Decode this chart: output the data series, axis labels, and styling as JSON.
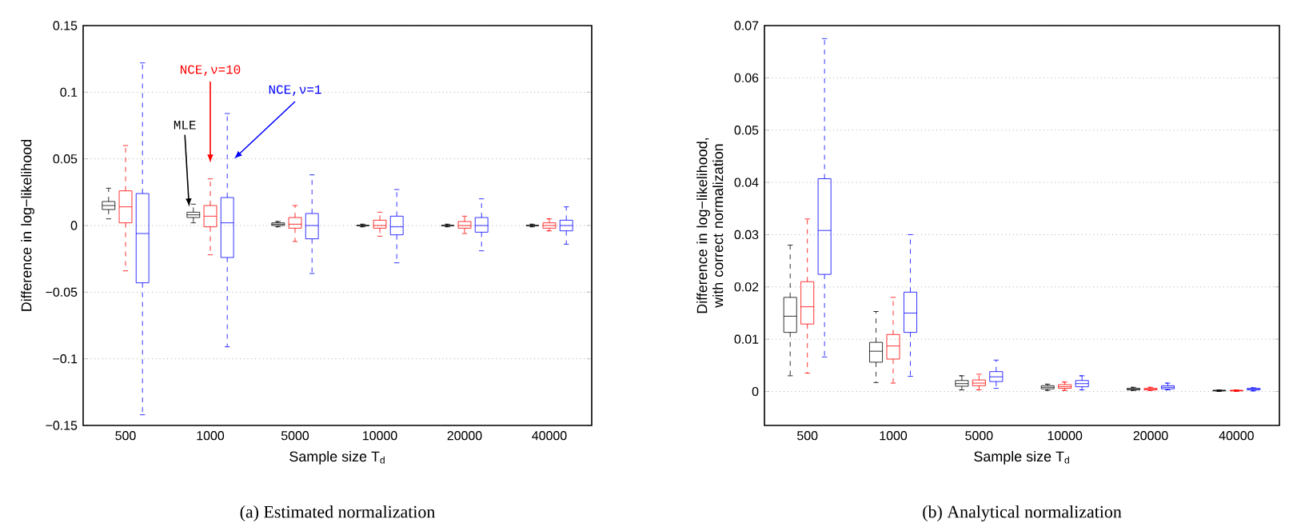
{
  "chart_data": [
    {
      "type": "box",
      "xlabel": "Sample size T$_{d}$",
      "ylabel": "Difference in log−likelihood",
      "categories": [
        "500",
        "1000",
        "5000",
        "10000",
        "20000",
        "40000"
      ],
      "ylim": [
        -0.15,
        0.15
      ],
      "yticks": [
        {
          "value": -0.15,
          "label": "−0.15"
        },
        {
          "value": -0.1,
          "label": "−0.1"
        },
        {
          "value": -0.05,
          "label": "−0.05"
        },
        0,
        0.05,
        0.1,
        0.15
      ],
      "grid": "y",
      "annotations": [
        "(a) Estimated normalization"
      ],
      "series": [
        {
          "name": "MLE",
          "color": "#000000",
          "boxes": [
            {
              "low": 0.005,
              "q1": 0.012,
              "median": 0.015,
              "q3": 0.018,
              "high": 0.028
            },
            {
              "low": 0.002,
              "q1": 0.006,
              "median": 0.008,
              "q3": 0.01,
              "high": 0.016
            },
            {
              "low": -0.001,
              "q1": 0,
              "median": 0.001,
              "q3": 0.002,
              "high": 0.003
            },
            {
              "low": -0.001,
              "q1": 0,
              "median": 0,
              "q3": 0,
              "high": 0.001
            },
            {
              "low": -0.001,
              "q1": 0,
              "median": 0,
              "q3": 0,
              "high": 0.001
            },
            {
              "low": -0.001,
              "q1": 0,
              "median": 0,
              "q3": 0,
              "high": 0.001
            }
          ]
        },
        {
          "name": "NCE,ν=10",
          "color": "#ff0000",
          "boxes": [
            {
              "low": -0.034,
              "q1": 0.002,
              "median": 0.014,
              "q3": 0.026,
              "high": 0.06
            },
            {
              "low": -0.022,
              "q1": -0.001,
              "median": 0.007,
              "q3": 0.015,
              "high": 0.035
            },
            {
              "low": -0.012,
              "q1": -0.002,
              "median": 0.001,
              "q3": 0.006,
              "high": 0.015
            },
            {
              "low": -0.008,
              "q1": -0.002,
              "median": 0,
              "q3": 0.004,
              "high": 0.01
            },
            {
              "low": -0.006,
              "q1": -0.002,
              "median": 0,
              "q3": 0.003,
              "high": 0.007
            },
            {
              "low": -0.004,
              "q1": -0.002,
              "median": 0,
              "q3": 0.002,
              "high": 0.005
            }
          ]
        },
        {
          "name": "NCE,ν=1",
          "color": "#0000ff",
          "boxes": [
            {
              "low": -0.142,
              "q1": -0.043,
              "median": -0.006,
              "q3": 0.024,
              "high": 0.122
            },
            {
              "low": -0.091,
              "q1": -0.024,
              "median": 0.002,
              "q3": 0.021,
              "high": 0.084
            },
            {
              "low": -0.036,
              "q1": -0.01,
              "median": 0,
              "q3": 0.009,
              "high": 0.038
            },
            {
              "low": -0.028,
              "q1": -0.007,
              "median": -0.001,
              "q3": 0.007,
              "high": 0.027
            },
            {
              "low": -0.019,
              "q1": -0.005,
              "median": 0,
              "q3": 0.006,
              "high": 0.02
            },
            {
              "low": -0.014,
              "q1": -0.004,
              "median": 0,
              "q3": 0.004,
              "high": 0.014
            }
          ]
        }
      ]
    },
    {
      "type": "box",
      "xlabel": "Sample size T$_{d}$",
      "ylabel": "Difference in log−likelihood, with correct normalization",
      "categories": [
        "500",
        "1000",
        "5000",
        "10000",
        "20000",
        "40000"
      ],
      "ylim": [
        -0.0065,
        0.07
      ],
      "yticks": [
        0,
        0.01,
        0.02,
        0.03,
        0.04,
        0.05,
        0.06,
        0.07
      ],
      "grid": "y",
      "annotations": [
        "(b) Analytical normalization"
      ],
      "series": [
        {
          "color": "#000000",
          "boxes": [
            {
              "low": 0.003,
              "q1": 0.0113,
              "median": 0.0144,
              "q3": 0.018,
              "high": 0.028
            },
            {
              "low": 0.0017,
              "q1": 0.0056,
              "median": 0.0077,
              "q3": 0.0094,
              "high": 0.0153
            },
            {
              "low": 0.0003,
              "q1": 0.001,
              "median": 0.0015,
              "q3": 0.0021,
              "high": 0.003
            },
            {
              "low": 0.0002,
              "q1": 0.0005,
              "median": 0.0008,
              "q3": 0.0011,
              "high": 0.0014
            },
            {
              "low": 0.0002,
              "q1": 0.0003,
              "median": 0.0004,
              "q3": 0.0006,
              "high": 0.0008
            },
            {
              "low": 0,
              "q1": 0.0001,
              "median": 0.0002,
              "q3": 0.0002,
              "high": 0.0003
            }
          ]
        },
        {
          "color": "#ff0000",
          "boxes": [
            {
              "low": 0.0035,
              "q1": 0.0129,
              "median": 0.0162,
              "q3": 0.021,
              "high": 0.033
            },
            {
              "low": 0.0016,
              "q1": 0.0062,
              "median": 0.0087,
              "q3": 0.0109,
              "high": 0.018
            },
            {
              "low": 0.0003,
              "q1": 0.0011,
              "median": 0.0016,
              "q3": 0.0022,
              "high": 0.0033
            },
            {
              "low": 0.0002,
              "q1": 0.0006,
              "median": 0.0009,
              "q3": 0.0013,
              "high": 0.0018
            },
            {
              "low": 0.0002,
              "q1": 0.0003,
              "median": 0.0004,
              "q3": 0.0006,
              "high": 0.0008
            },
            {
              "low": 0,
              "q1": 0.0001,
              "median": 0.0002,
              "q3": 0.0002,
              "high": 0.0003
            }
          ]
        },
        {
          "color": "#0000ff",
          "boxes": [
            {
              "low": 0.0066,
              "q1": 0.0224,
              "median": 0.0308,
              "q3": 0.0407,
              "high": 0.0675
            },
            {
              "low": 0.0029,
              "q1": 0.0113,
              "median": 0.015,
              "q3": 0.019,
              "high": 0.03
            },
            {
              "low": 0.0006,
              "q1": 0.0019,
              "median": 0.0028,
              "q3": 0.0038,
              "high": 0.006
            },
            {
              "low": 0.0003,
              "q1": 0.0009,
              "median": 0.0015,
              "q3": 0.0021,
              "high": 0.003
            },
            {
              "low": 0.0003,
              "q1": 0.0005,
              "median": 0.0008,
              "q3": 0.0011,
              "high": 0.0016
            },
            {
              "low": 0.0001,
              "q1": 0.0003,
              "median": 0.0004,
              "q3": 0.0006,
              "high": 0.0007
            }
          ]
        }
      ]
    }
  ]
}
